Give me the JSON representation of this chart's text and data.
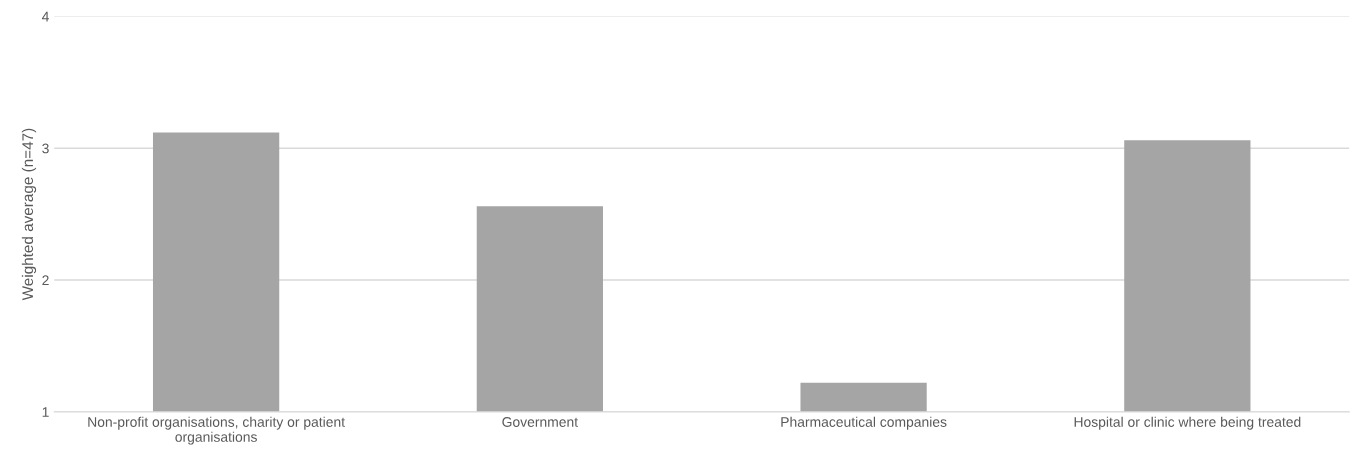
{
  "chart_data": {
    "type": "bar",
    "ylabel": "Weighted average (n=47)",
    "categories": [
      "Non-profit organisations, charity or patient organisations",
      "Government",
      "Pharmaceutical companies",
      "Hospital or clinic where being treated"
    ],
    "values": [
      3.12,
      2.56,
      1.22,
      3.06
    ],
    "color": "#a5a5a5",
    "ylim": [
      1,
      4
    ],
    "yticks": [
      1,
      2,
      3,
      4
    ],
    "grid": "y"
  }
}
